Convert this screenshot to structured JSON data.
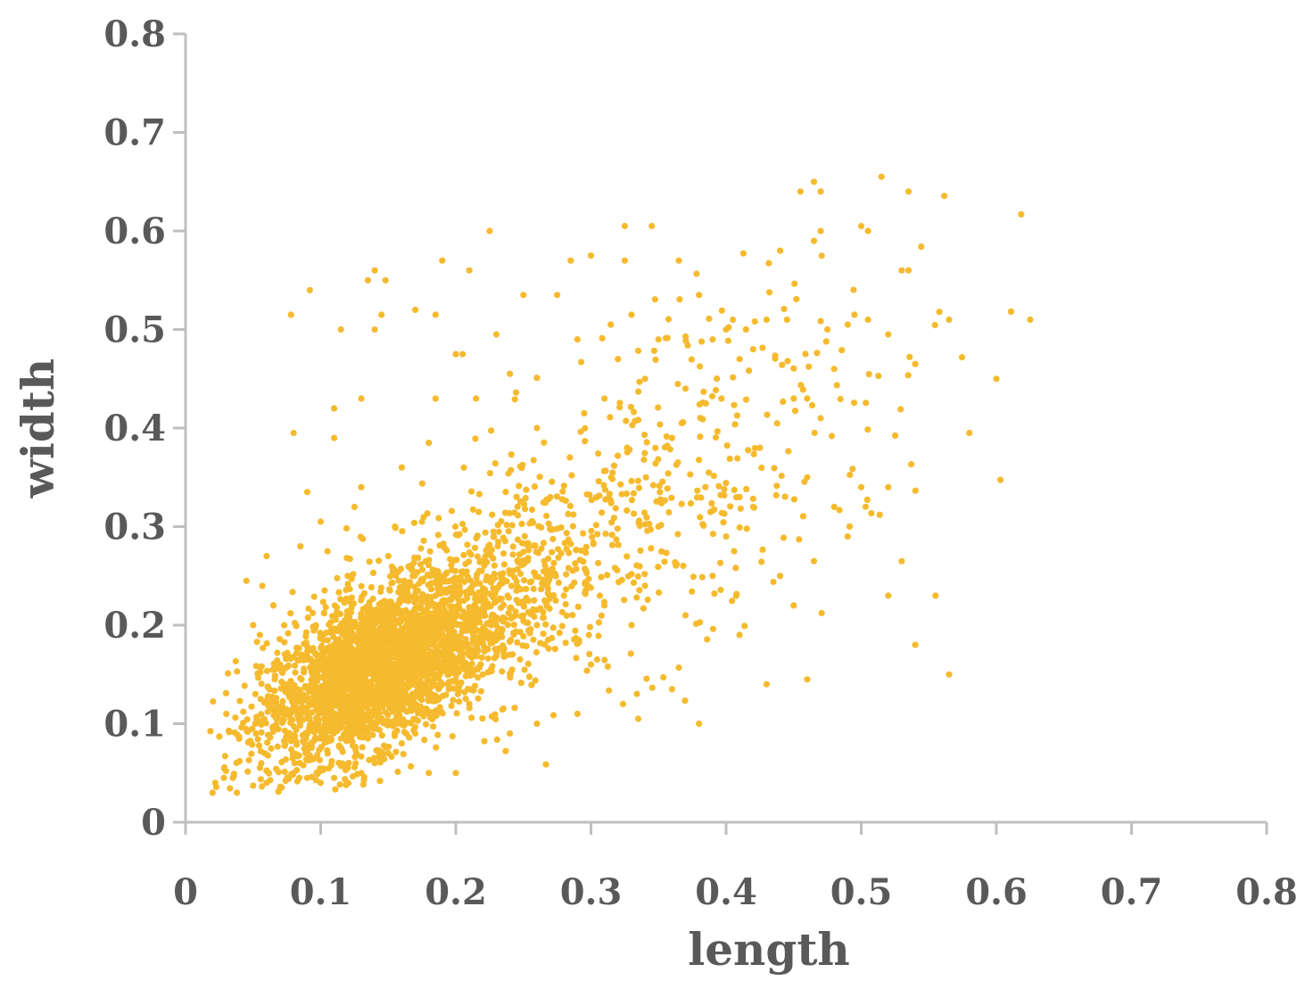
{
  "chart_data": {
    "type": "scatter",
    "xlabel": "length",
    "ylabel": "width",
    "xlim": [
      0,
      0.8
    ],
    "ylim": [
      0,
      0.8
    ],
    "x_ticks": [
      "0",
      "0.1",
      "0.2",
      "0.3",
      "0.4",
      "0.5",
      "0.6",
      "0.7",
      "0.8"
    ],
    "y_ticks": [
      "0",
      "0.1",
      "0.2",
      "0.3",
      "0.4",
      "0.5",
      "0.6",
      "0.7",
      "0.8"
    ],
    "grid": false,
    "legend": "none",
    "marker_color": "#F5BA2E",
    "axis_color": "#BFBFBF",
    "text_color": "#595959",
    "series": [
      {
        "points": [
          [
            0.02,
            0.03
          ],
          [
            0.022,
            0.04
          ],
          [
            0.025,
            0.087
          ],
          [
            0.03,
            0.052
          ],
          [
            0.035,
            0.045
          ],
          [
            0.038,
            0.03
          ],
          [
            0.04,
            0.062
          ],
          [
            0.045,
            0.245
          ],
          [
            0.05,
            0.2
          ],
          [
            0.055,
            0.19
          ],
          [
            0.06,
            0.27
          ],
          [
            0.065,
            0.22
          ],
          [
            0.07,
            0.16
          ],
          [
            0.075,
            0.14
          ],
          [
            0.078,
            0.515
          ],
          [
            0.08,
            0.395
          ],
          [
            0.085,
            0.28
          ],
          [
            0.09,
            0.335
          ],
          [
            0.092,
            0.54
          ],
          [
            0.1,
            0.305
          ],
          [
            0.105,
            0.275
          ],
          [
            0.11,
            0.42
          ],
          [
            0.11,
            0.39
          ],
          [
            0.115,
            0.5
          ],
          [
            0.12,
            0.25
          ],
          [
            0.125,
            0.32
          ],
          [
            0.13,
            0.43
          ],
          [
            0.13,
            0.34
          ],
          [
            0.135,
            0.55
          ],
          [
            0.14,
            0.56
          ],
          [
            0.14,
            0.5
          ],
          [
            0.145,
            0.515
          ],
          [
            0.148,
            0.55
          ],
          [
            0.15,
            0.27
          ],
          [
            0.155,
            0.3
          ],
          [
            0.16,
            0.36
          ],
          [
            0.17,
            0.52
          ],
          [
            0.175,
            0.305
          ],
          [
            0.18,
            0.385
          ],
          [
            0.185,
            0.43
          ],
          [
            0.185,
            0.515
          ],
          [
            0.19,
            0.57
          ],
          [
            0.2,
            0.475
          ],
          [
            0.205,
            0.475
          ],
          [
            0.21,
            0.56
          ],
          [
            0.215,
            0.43
          ],
          [
            0.225,
            0.6
          ],
          [
            0.23,
            0.495
          ],
          [
            0.24,
            0.455
          ],
          [
            0.25,
            0.535
          ],
          [
            0.26,
            0.4
          ],
          [
            0.27,
            0.33
          ],
          [
            0.275,
            0.535
          ],
          [
            0.285,
            0.57
          ],
          [
            0.29,
            0.49
          ],
          [
            0.295,
            0.415
          ],
          [
            0.3,
            0.575
          ],
          [
            0.31,
            0.43
          ],
          [
            0.315,
            0.35
          ],
          [
            0.32,
            0.47
          ],
          [
            0.325,
            0.605
          ],
          [
            0.325,
            0.57
          ],
          [
            0.33,
            0.515
          ],
          [
            0.34,
            0.45
          ],
          [
            0.345,
            0.605
          ],
          [
            0.35,
            0.49
          ],
          [
            0.36,
            0.39
          ],
          [
            0.365,
            0.57
          ],
          [
            0.37,
            0.44
          ],
          [
            0.38,
            0.535
          ],
          [
            0.385,
            0.425
          ],
          [
            0.39,
            0.49
          ],
          [
            0.4,
            0.5
          ],
          [
            0.405,
            0.51
          ],
          [
            0.41,
            0.47
          ],
          [
            0.42,
            0.48
          ],
          [
            0.425,
            0.38
          ],
          [
            0.43,
            0.51
          ],
          [
            0.44,
            0.58
          ],
          [
            0.445,
            0.51
          ],
          [
            0.45,
            0.43
          ],
          [
            0.455,
            0.64
          ],
          [
            0.46,
            0.43
          ],
          [
            0.465,
            0.65
          ],
          [
            0.465,
            0.59
          ],
          [
            0.47,
            0.64
          ],
          [
            0.47,
            0.6
          ],
          [
            0.475,
            0.5
          ],
          [
            0.48,
            0.46
          ],
          [
            0.49,
            0.505
          ],
          [
            0.495,
            0.515
          ],
          [
            0.5,
            0.605
          ],
          [
            0.505,
            0.6
          ],
          [
            0.505,
            0.51
          ],
          [
            0.515,
            0.655
          ],
          [
            0.52,
            0.495
          ],
          [
            0.53,
            0.56
          ],
          [
            0.535,
            0.56
          ],
          [
            0.535,
            0.64
          ],
          [
            0.54,
            0.465
          ],
          [
            0.565,
            0.51
          ],
          [
            0.58,
            0.395
          ],
          [
            0.6,
            0.45
          ],
          [
            0.625,
            0.51
          ],
          [
            0.48,
            0.32
          ],
          [
            0.49,
            0.29
          ],
          [
            0.5,
            0.34
          ],
          [
            0.52,
            0.34
          ],
          [
            0.53,
            0.265
          ],
          [
            0.52,
            0.23
          ],
          [
            0.555,
            0.23
          ],
          [
            0.54,
            0.18
          ],
          [
            0.565,
            0.15
          ],
          [
            0.465,
            0.265
          ],
          [
            0.47,
            0.41
          ],
          [
            0.46,
            0.35
          ],
          [
            0.43,
            0.14
          ],
          [
            0.46,
            0.145
          ],
          [
            0.41,
            0.19
          ],
          [
            0.38,
            0.1
          ],
          [
            0.36,
            0.135
          ],
          [
            0.335,
            0.105
          ],
          [
            0.29,
            0.11
          ],
          [
            0.26,
            0.1
          ],
          [
            0.24,
            0.09
          ],
          [
            0.2,
            0.05
          ],
          [
            0.18,
            0.05
          ],
          [
            0.41,
            0.33
          ],
          [
            0.4,
            0.29
          ],
          [
            0.42,
            0.32
          ],
          [
            0.44,
            0.25
          ],
          [
            0.45,
            0.22
          ],
          [
            0.39,
            0.25
          ],
          [
            0.37,
            0.21
          ],
          [
            0.35,
            0.3
          ],
          [
            0.34,
            0.24
          ],
          [
            0.33,
            0.2
          ],
          [
            0.31,
            0.22
          ],
          [
            0.3,
            0.16
          ],
          [
            0.28,
            0.23
          ],
          [
            0.27,
            0.25
          ],
          [
            0.26,
            0.2
          ],
          [
            0.25,
            0.22
          ],
          [
            0.24,
            0.17
          ],
          [
            0.23,
            0.19
          ],
          [
            0.22,
            0.15
          ],
          [
            0.21,
            0.12
          ],
          [
            0.2,
            0.16
          ],
          [
            0.19,
            0.14
          ],
          [
            0.18,
            0.11
          ],
          [
            0.17,
            0.09
          ],
          [
            0.16,
            0.08
          ],
          [
            0.15,
            0.07
          ],
          [
            0.14,
            0.06
          ],
          [
            0.13,
            0.05
          ],
          [
            0.12,
            0.055
          ],
          [
            0.11,
            0.045
          ],
          [
            0.1,
            0.04
          ],
          [
            0.09,
            0.045
          ],
          [
            0.08,
            0.05
          ],
          [
            0.07,
            0.035
          ],
          [
            0.06,
            0.04
          ]
        ]
      }
    ]
  }
}
